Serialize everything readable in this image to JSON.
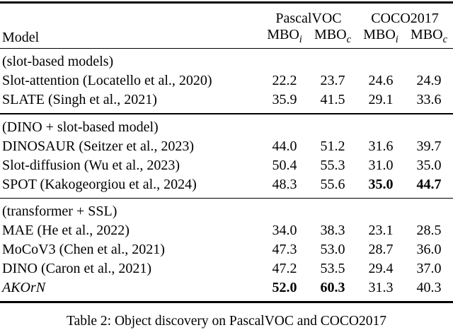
{
  "page": {
    "background_color": "#ffffff",
    "text_color": "#000000"
  },
  "table": {
    "header": {
      "model_label": "Model",
      "groups": [
        {
          "label": "PascalVOC"
        },
        {
          "label": "COCO2017"
        }
      ],
      "subcols": [
        {
          "name": "MBO",
          "sub": "i"
        },
        {
          "name": "MBO",
          "sub": "c"
        },
        {
          "name": "MBO",
          "sub": "i"
        },
        {
          "name": "MBO",
          "sub": "c"
        }
      ]
    },
    "sections": [
      {
        "group_label": "(slot-based models)",
        "rows": [
          {
            "model": "Slot-attention (Locatello et al., 2020)",
            "values": [
              {
                "v": "22.2"
              },
              {
                "v": "23.7"
              },
              {
                "v": "24.6"
              },
              {
                "v": "24.9"
              }
            ]
          },
          {
            "model": "SLATE (Singh et al., 2021)",
            "values": [
              {
                "v": "35.9"
              },
              {
                "v": "41.5"
              },
              {
                "v": "29.1"
              },
              {
                "v": "33.6"
              }
            ]
          }
        ]
      },
      {
        "group_label": "(DINO + slot-based model)",
        "rows": [
          {
            "model": "DINOSAUR (Seitzer et al., 2023)",
            "values": [
              {
                "v": "44.0"
              },
              {
                "v": "51.2"
              },
              {
                "v": "31.6"
              },
              {
                "v": "39.7"
              }
            ]
          },
          {
            "model": "Slot-diffusion (Wu et al., 2023)",
            "values": [
              {
                "v": "50.4"
              },
              {
                "v": "55.3"
              },
              {
                "v": "31.0"
              },
              {
                "v": "35.0"
              }
            ]
          },
          {
            "model": "SPOT (Kakogeorgiou et al., 2024)",
            "values": [
              {
                "v": "48.3"
              },
              {
                "v": "55.6"
              },
              {
                "v": "35.0",
                "b": true
              },
              {
                "v": "44.7",
                "b": true
              }
            ]
          }
        ]
      },
      {
        "group_label": "(transformer + SSL)",
        "rows": [
          {
            "model": "MAE (He et al., 2022)",
            "values": [
              {
                "v": "34.0"
              },
              {
                "v": "38.3"
              },
              {
                "v": "23.1"
              },
              {
                "v": "28.5"
              }
            ]
          },
          {
            "model": "MoCoV3 (Chen et al., 2021)",
            "values": [
              {
                "v": "47.3"
              },
              {
                "v": "53.0"
              },
              {
                "v": "28.7"
              },
              {
                "v": "36.0"
              }
            ]
          },
          {
            "model": "DINO (Caron et al., 2021)",
            "values": [
              {
                "v": "47.2"
              },
              {
                "v": "53.5"
              },
              {
                "v": "29.4"
              },
              {
                "v": "37.0"
              }
            ]
          },
          {
            "model": "AKOrN",
            "italic": true,
            "values": [
              {
                "v": "52.0",
                "b": true
              },
              {
                "v": "60.3",
                "b": true
              },
              {
                "v": "31.3"
              },
              {
                "v": "40.3"
              }
            ]
          }
        ]
      }
    ]
  },
  "caption": {
    "text": "Table 2: Object discovery on PascalVOC and COCO2017"
  }
}
